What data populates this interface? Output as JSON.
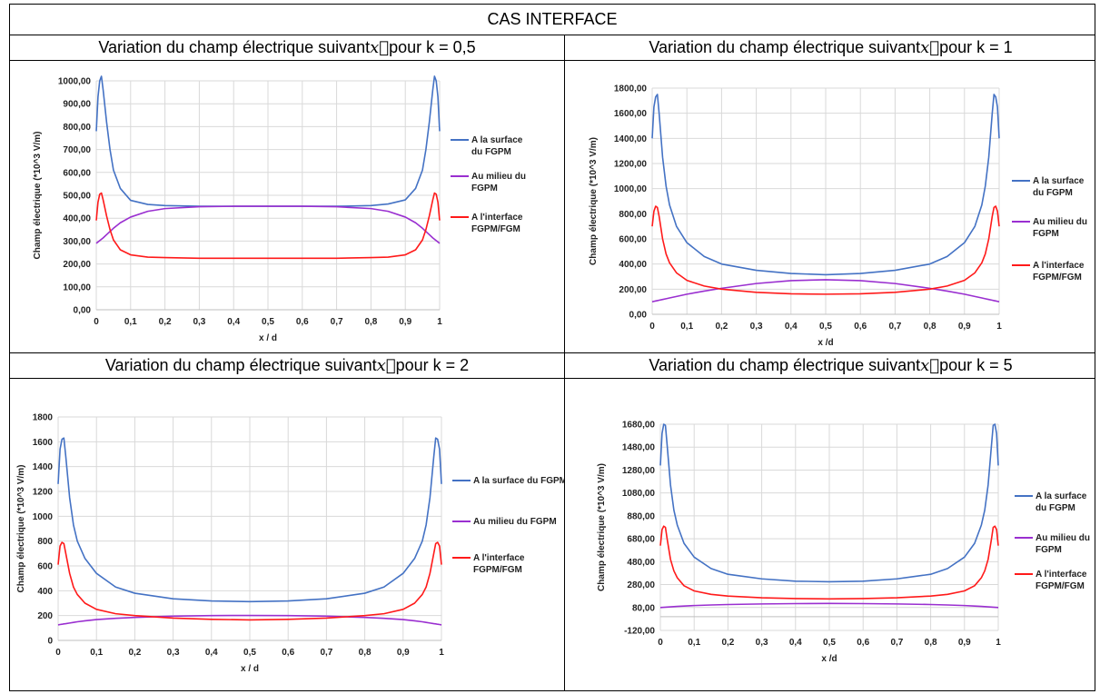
{
  "main_title": "CAS INTERFACE",
  "colors": {
    "surface": "#4472C4",
    "milieu": "#9A2FD0",
    "interface": "#FF1A1A",
    "grid": "#D9D9D9"
  },
  "chart_data": [
    {
      "type": "line",
      "title_prefix": "Variation du champ électrique suivant ",
      "title_vector": "x⃗",
      "title_suffix": " pour k = 0,5",
      "xlabel": "x / d",
      "ylabel": "Champ électrique (*10^3 V/m)",
      "xlim": [
        0,
        1
      ],
      "ylim": [
        0,
        1000
      ],
      "ystep": 100,
      "xticks": [
        "0",
        "0,1",
        "0,2",
        "0,3",
        "0,4",
        "0,5",
        "0,6",
        "0,7",
        "0,8",
        "0,9",
        "1"
      ],
      "yticks": [
        "0,00",
        "100,00",
        "200,00",
        "300,00",
        "400,00",
        "500,00",
        "600,00",
        "700,00",
        "800,00",
        "900,00",
        "1000,00"
      ],
      "legend_position": "right",
      "x": [
        0,
        0.005,
        0.01,
        0.015,
        0.02,
        0.03,
        0.04,
        0.05,
        0.07,
        0.1,
        0.15,
        0.2,
        0.3,
        0.4,
        0.5,
        0.6,
        0.7,
        0.8,
        0.85,
        0.9,
        0.93,
        0.95,
        0.96,
        0.97,
        0.98,
        0.985,
        0.99,
        0.995,
        1
      ],
      "series": [
        {
          "name": "A la surface du FGPM",
          "legend_lines": [
            "A la surface",
            "du FGPM"
          ],
          "color_key": "surface",
          "values": [
            780,
            930,
            1000,
            1020,
            960,
            820,
            700,
            610,
            530,
            478,
            460,
            455,
            452,
            452,
            452,
            452,
            452,
            455,
            462,
            480,
            530,
            610,
            700,
            820,
            960,
            1020,
            1000,
            930,
            780
          ]
        },
        {
          "name": "Au milieu du FGPM",
          "legend_lines": [
            "Au milieu du",
            "FGPM"
          ],
          "color_key": "milieu",
          "values": [
            290,
            296,
            302,
            308,
            314,
            328,
            342,
            356,
            380,
            405,
            430,
            442,
            450,
            452,
            452,
            452,
            450,
            442,
            430,
            405,
            380,
            356,
            342,
            328,
            314,
            308,
            302,
            296,
            290
          ]
        },
        {
          "name": "A l'interface FGPM/FGM",
          "legend_lines": [
            "A l'interface",
            "FGPM/FGM"
          ],
          "color_key": "interface",
          "values": [
            390,
            470,
            505,
            510,
            480,
            410,
            350,
            305,
            262,
            240,
            230,
            228,
            225,
            225,
            225,
            225,
            225,
            228,
            230,
            240,
            262,
            305,
            350,
            410,
            480,
            510,
            505,
            470,
            390
          ]
        }
      ]
    },
    {
      "type": "line",
      "title_prefix": "Variation du champ électrique suivant ",
      "title_vector": "x⃗",
      "title_suffix": " pour k = 1",
      "xlabel": "x /d",
      "ylabel": "Champ électrique (*10^3 V/m)",
      "xlim": [
        0,
        1
      ],
      "ylim": [
        0,
        1800
      ],
      "ystep": 200,
      "xticks": [
        "0",
        "0,1",
        "0,2",
        "0,3",
        "0,4",
        "0,5",
        "0,6",
        "0,7",
        "0,8",
        "0,9",
        "1"
      ],
      "yticks": [
        "0,00",
        "200,00",
        "400,00",
        "600,00",
        "800,00",
        "1000,00",
        "1200,00",
        "1400,00",
        "1600,00",
        "1800,00"
      ],
      "legend_position": "right",
      "x": [
        0,
        0.005,
        0.01,
        0.015,
        0.02,
        0.03,
        0.04,
        0.05,
        0.07,
        0.1,
        0.15,
        0.2,
        0.3,
        0.4,
        0.5,
        0.6,
        0.7,
        0.8,
        0.85,
        0.9,
        0.93,
        0.95,
        0.96,
        0.97,
        0.98,
        0.985,
        0.99,
        0.995,
        1
      ],
      "series": [
        {
          "name": "A la surface du FGPM",
          "legend_lines": [
            "A la surface",
            "du FGPM"
          ],
          "color_key": "surface",
          "values": [
            1400,
            1650,
            1730,
            1750,
            1600,
            1250,
            1020,
            870,
            700,
            570,
            460,
            400,
            350,
            325,
            315,
            325,
            350,
            400,
            460,
            570,
            700,
            870,
            1020,
            1250,
            1600,
            1750,
            1730,
            1650,
            1400
          ]
        },
        {
          "name": "Au milieu du FGPM",
          "legend_lines": [
            "Au milieu du",
            "FGPM"
          ],
          "color_key": "milieu",
          "values": [
            100,
            103,
            106,
            109,
            112,
            118,
            124,
            130,
            142,
            160,
            185,
            207,
            245,
            268,
            275,
            268,
            245,
            207,
            185,
            160,
            142,
            130,
            124,
            118,
            112,
            109,
            106,
            103,
            100
          ]
        },
        {
          "name": "A l'interface FGPM/FGM",
          "legend_lines": [
            "A l'interface",
            "FGPM/FGM"
          ],
          "color_key": "interface",
          "values": [
            700,
            820,
            860,
            850,
            780,
            600,
            480,
            410,
            330,
            270,
            225,
            200,
            175,
            163,
            160,
            163,
            175,
            200,
            225,
            270,
            330,
            410,
            480,
            600,
            780,
            850,
            860,
            820,
            700
          ]
        }
      ]
    },
    {
      "type": "line",
      "title_prefix": "Variation du champ électrique suivant ",
      "title_vector": "x⃗",
      "title_suffix": " pour k = 2",
      "xlabel": "x / d",
      "ylabel": "Champ électrique (*10^3 V/m)",
      "xlim": [
        0,
        1
      ],
      "ylim": [
        0,
        1800
      ],
      "ystep": 200,
      "xticks": [
        "0",
        "0,1",
        "0,2",
        "0,3",
        "0,4",
        "0,5",
        "0,6",
        "0,7",
        "0,8",
        "0,9",
        "1"
      ],
      "yticks": [
        "0",
        "200",
        "400",
        "600",
        "800",
        "1000",
        "1200",
        "1400",
        "1600",
        "1800"
      ],
      "legend_position": "right",
      "x": [
        0,
        0.005,
        0.01,
        0.015,
        0.02,
        0.03,
        0.04,
        0.05,
        0.07,
        0.1,
        0.15,
        0.2,
        0.3,
        0.4,
        0.5,
        0.6,
        0.7,
        0.8,
        0.85,
        0.9,
        0.93,
        0.95,
        0.96,
        0.97,
        0.98,
        0.985,
        0.99,
        0.995,
        1
      ],
      "series": [
        {
          "name": "A la surface du FGPM",
          "legend_lines": [
            "A la surface du FGPM"
          ],
          "color_key": "surface",
          "values": [
            1260,
            1540,
            1620,
            1630,
            1480,
            1150,
            930,
            800,
            660,
            540,
            430,
            380,
            335,
            318,
            312,
            318,
            335,
            380,
            430,
            540,
            660,
            800,
            930,
            1150,
            1480,
            1630,
            1620,
            1540,
            1260
          ]
        },
        {
          "name": "Au milieu du FGPM",
          "legend_lines": [
            "Au  milieu du FGPM"
          ],
          "color_key": "milieu",
          "values": [
            125,
            128,
            130,
            133,
            135,
            140,
            145,
            150,
            158,
            168,
            178,
            185,
            195,
            200,
            201,
            200,
            195,
            185,
            178,
            168,
            158,
            150,
            145,
            140,
            135,
            133,
            130,
            128,
            125
          ]
        },
        {
          "name": "A l'interface FGPM/FGM",
          "legend_lines": [
            "A l'interface",
            "FGPM/FGM"
          ],
          "color_key": "interface",
          "values": [
            610,
            760,
            790,
            780,
            700,
            540,
            430,
            370,
            300,
            250,
            215,
            200,
            180,
            170,
            165,
            170,
            180,
            200,
            215,
            250,
            300,
            370,
            430,
            540,
            700,
            780,
            790,
            760,
            610
          ]
        }
      ]
    },
    {
      "type": "line",
      "title_prefix": "Variation du champ électrique suivant ",
      "title_vector": "x⃗",
      "title_suffix": " pour k = 5",
      "xlabel": "x /d",
      "ylabel": "Champ électrique (*10^3 V/m)",
      "xlim": [
        0,
        1
      ],
      "ylim": [
        -120,
        1680
      ],
      "ystep": 200,
      "xticks": [
        "0",
        "0,1",
        "0,2",
        "0,3",
        "0,4",
        "0,5",
        "0,6",
        "0,7",
        "0,8",
        "0,9",
        "1"
      ],
      "yticks": [
        "-120,00",
        "80,00",
        "280,00",
        "480,00",
        "680,00",
        "880,00",
        "1080,00",
        "1280,00",
        "1480,00",
        "1680,00"
      ],
      "legend_position": "right",
      "x": [
        0,
        0.005,
        0.01,
        0.015,
        0.02,
        0.03,
        0.04,
        0.05,
        0.07,
        0.1,
        0.15,
        0.2,
        0.3,
        0.4,
        0.5,
        0.6,
        0.7,
        0.8,
        0.85,
        0.9,
        0.93,
        0.95,
        0.96,
        0.97,
        0.98,
        0.985,
        0.99,
        0.995,
        1
      ],
      "series": [
        {
          "name": "A la surface du FGPM",
          "legend_lines": [
            "A la surface",
            "du FGPM"
          ],
          "color_key": "surface",
          "values": [
            1320,
            1600,
            1680,
            1670,
            1500,
            1150,
            930,
            800,
            640,
            520,
            420,
            370,
            330,
            310,
            305,
            310,
            330,
            370,
            420,
            520,
            640,
            800,
            930,
            1150,
            1500,
            1670,
            1680,
            1600,
            1320
          ]
        },
        {
          "name": "Au milieu du FGPM",
          "legend_lines": [
            "Au milieu du",
            "FGPM"
          ],
          "color_key": "milieu",
          "values": [
            80,
            81,
            82,
            83,
            84,
            86,
            88,
            90,
            93,
            97,
            102,
            106,
            111,
            114,
            115,
            114,
            111,
            106,
            102,
            97,
            93,
            90,
            88,
            86,
            84,
            83,
            82,
            81,
            80
          ]
        },
        {
          "name": "A l'interface FGPM/FGM",
          "legend_lines": [
            "A l'interface",
            "FGPM/FGM"
          ],
          "color_key": "interface",
          "values": [
            620,
            760,
            790,
            780,
            680,
            500,
            400,
            340,
            270,
            225,
            195,
            180,
            165,
            158,
            155,
            158,
            165,
            180,
            195,
            225,
            270,
            340,
            400,
            500,
            680,
            780,
            790,
            760,
            620
          ]
        }
      ]
    }
  ]
}
